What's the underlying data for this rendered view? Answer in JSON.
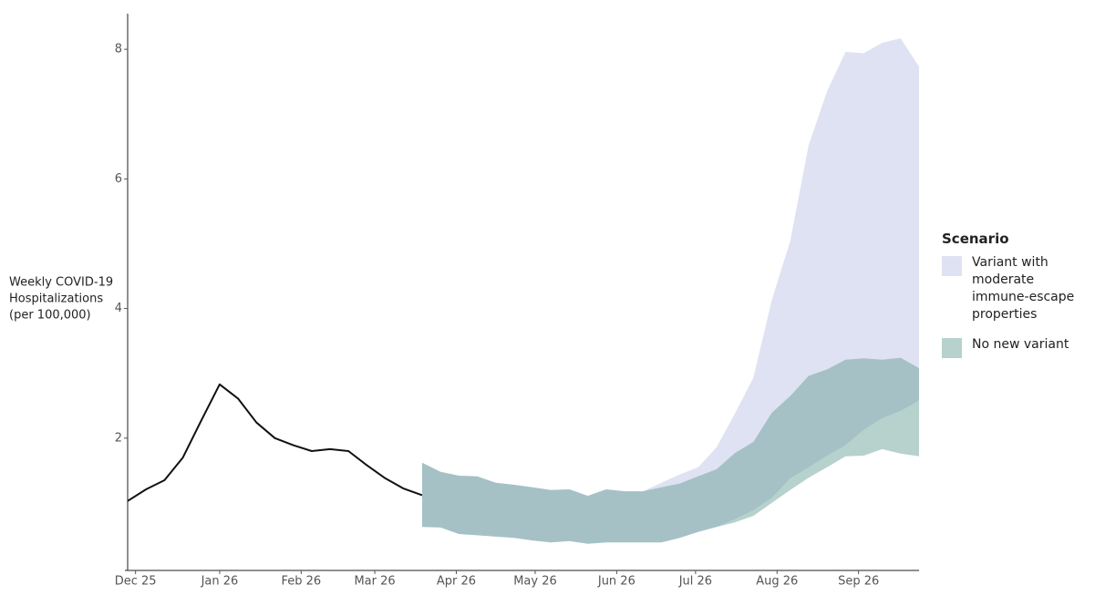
{
  "chart_data": {
    "type": "line",
    "y_label": [
      "Weekly COVID-19",
      "Hospitalizations",
      "(per 100,000)"
    ],
    "legend_title": "Scenario",
    "xlim": [
      "Dec 22",
      "Oct 19"
    ],
    "xticks": [
      "Dec 25",
      "Jan 26",
      "Feb 26",
      "Mar 26",
      "Apr 26",
      "May 26",
      "Jun 26",
      "Jul 26",
      "Aug 26",
      "Sep 26"
    ],
    "ylim": [
      0,
      8.55
    ],
    "yticks": [
      2,
      4,
      6,
      8
    ],
    "series": [
      {
        "type": "line",
        "color": "#111111",
        "x": [
          "Dec 22",
          "Dec 29",
          "Jan 5",
          "Jan 12",
          "Jan 19",
          "Jan 26",
          "Feb 2",
          "Feb 9",
          "Feb 16",
          "Feb 23",
          "Mar 2",
          "Mar 9",
          "Mar 16",
          "Mar 23",
          "Mar 30",
          "Apr 6",
          "Apr 13"
        ],
        "values": [
          1.03,
          1.21,
          1.35,
          1.7,
          2.27,
          2.83,
          2.61,
          2.24,
          2.0,
          1.89,
          1.8,
          1.83,
          1.8,
          1.58,
          1.38,
          1.22,
          1.12
        ]
      },
      {
        "type": "band",
        "name": "Variant with moderate immune-escape properties",
        "color": "#dfe2f2",
        "x": [
          "Apr 13",
          "Apr 20",
          "Apr 27",
          "May 4",
          "May 11",
          "May 18",
          "May 25",
          "Jun 1",
          "Jun 8",
          "Jun 15",
          "Jun 22",
          "Jun 29",
          "Jul 6",
          "Jul 13",
          "Jul 20",
          "Jul 27",
          "Aug 3",
          "Aug 10",
          "Aug 17",
          "Aug 24",
          "Aug 31",
          "Sep 7",
          "Sep 14",
          "Sep 21",
          "Sep 28",
          "Oct 5",
          "Oct 12",
          "Oct 19"
        ],
        "upper": [
          1.62,
          1.48,
          1.42,
          1.41,
          1.31,
          1.28,
          1.24,
          1.2,
          1.21,
          1.11,
          1.21,
          1.18,
          1.18,
          1.31,
          1.44,
          1.55,
          1.86,
          2.38,
          2.93,
          4.13,
          5.04,
          6.52,
          7.35,
          7.96,
          7.94,
          8.1,
          8.17,
          7.73
        ],
        "lower": [
          0.63,
          0.62,
          0.52,
          0.5,
          0.48,
          0.46,
          0.42,
          0.39,
          0.41,
          0.37,
          0.39,
          0.39,
          0.39,
          0.39,
          0.46,
          0.56,
          0.63,
          0.75,
          0.89,
          1.08,
          1.38,
          1.55,
          1.73,
          1.89,
          2.13,
          2.31,
          2.42,
          2.58
        ]
      },
      {
        "type": "band",
        "name": "No new variant",
        "color": "#5f9a91",
        "x": [
          "Apr 13",
          "Apr 20",
          "Apr 27",
          "May 4",
          "May 11",
          "May 18",
          "May 25",
          "Jun 1",
          "Jun 8",
          "Jun 15",
          "Jun 22",
          "Jun 29",
          "Jul 6",
          "Jul 13",
          "Jul 20",
          "Jul 27",
          "Aug 3",
          "Aug 10",
          "Aug 17",
          "Aug 24",
          "Aug 31",
          "Sep 7",
          "Sep 14",
          "Sep 21",
          "Sep 28",
          "Oct 5",
          "Oct 12",
          "Oct 19"
        ],
        "upper": [
          1.62,
          1.48,
          1.42,
          1.41,
          1.31,
          1.28,
          1.24,
          1.2,
          1.21,
          1.11,
          1.21,
          1.18,
          1.18,
          1.24,
          1.3,
          1.41,
          1.52,
          1.77,
          1.94,
          2.39,
          2.65,
          2.96,
          3.06,
          3.21,
          3.23,
          3.21,
          3.24,
          3.08
        ],
        "lower": [
          0.63,
          0.62,
          0.52,
          0.5,
          0.48,
          0.46,
          0.42,
          0.39,
          0.41,
          0.37,
          0.39,
          0.39,
          0.39,
          0.39,
          0.46,
          0.55,
          0.63,
          0.7,
          0.8,
          1.0,
          1.2,
          1.39,
          1.55,
          1.72,
          1.73,
          1.83,
          1.76,
          1.72
        ]
      }
    ]
  }
}
